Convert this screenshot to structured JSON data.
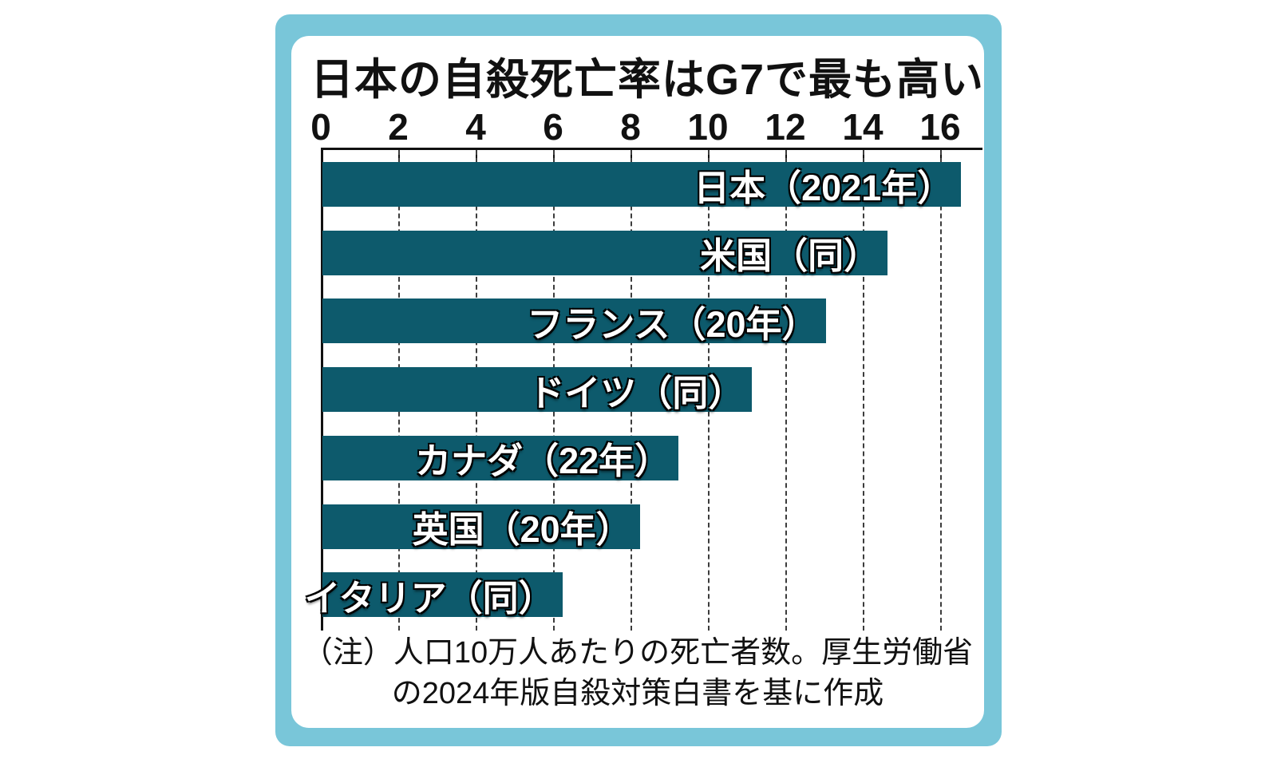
{
  "colors": {
    "frame_border": "#79c6d9",
    "card_background": "#ffffff",
    "bar": "#0d5a6c",
    "text": "#111111"
  },
  "chart_data": {
    "type": "bar",
    "orientation": "horizontal",
    "title": "日本の自殺死亡率はG7で最も高い",
    "categories": [
      "日本（2021年）",
      "米国（同）",
      "フランス（20年）",
      "ドイツ（同）",
      "カナダ（22年）",
      "英国（20年）",
      "イタリア（同）"
    ],
    "values": [
      16.5,
      14.6,
      13.0,
      11.1,
      9.2,
      8.2,
      6.2
    ],
    "x_tick_labels": [
      "0",
      "2",
      "4",
      "6",
      "8",
      "10",
      "12",
      "14",
      "16"
    ],
    "x_tick_values": [
      0,
      2,
      4,
      6,
      8,
      10,
      12,
      14,
      16
    ],
    "xlim": [
      0,
      17.1
    ],
    "grid": "dashed-vertical",
    "legend": "none",
    "xlabel": "",
    "ylabel": "",
    "note_line1": "（注）人口10万人あたりの死亡者数。厚生労働省",
    "note_line2": "の2024年版自殺対策白書を基に作成"
  }
}
